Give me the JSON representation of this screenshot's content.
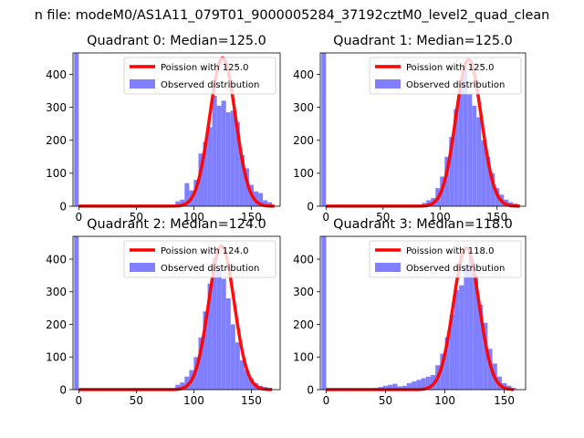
{
  "suptitle": "n file: modeM0/AS1A11_079T01_9000005284_37192cztM0_level2_quad_clean",
  "colors": {
    "bars": "#8080ff",
    "fit": "#ff0000"
  },
  "chart_data": [
    {
      "type": "bar",
      "title": "Quadrant 0: Median=125.0",
      "xlim": [
        -5,
        175
      ],
      "ylim": [
        0,
        465
      ],
      "xticks": [
        0,
        50,
        100,
        150
      ],
      "yticks": [
        0,
        100,
        200,
        300,
        400
      ],
      "legend": {
        "placement": "top-right",
        "fit_label": "Poission with 125.0",
        "bar_label": "Observed distribution"
      },
      "bin_width": 4,
      "bins": [
        [
          -2,
          465
        ],
        [
          2,
          2
        ],
        [
          6,
          2
        ],
        [
          10,
          2
        ],
        [
          14,
          2
        ],
        [
          18,
          2
        ],
        [
          22,
          2
        ],
        [
          26,
          2
        ],
        [
          30,
          2
        ],
        [
          34,
          2
        ],
        [
          38,
          2
        ],
        [
          42,
          2
        ],
        [
          46,
          2
        ],
        [
          50,
          2
        ],
        [
          54,
          2
        ],
        [
          58,
          2
        ],
        [
          62,
          2
        ],
        [
          66,
          2
        ],
        [
          70,
          2
        ],
        [
          74,
          2
        ],
        [
          78,
          2
        ],
        [
          82,
          3
        ],
        [
          86,
          15
        ],
        [
          90,
          20
        ],
        [
          94,
          70
        ],
        [
          98,
          48
        ],
        [
          102,
          80
        ],
        [
          106,
          160
        ],
        [
          110,
          195
        ],
        [
          114,
          240
        ],
        [
          118,
          335
        ],
        [
          122,
          305
        ],
        [
          126,
          320
        ],
        [
          130,
          285
        ],
        [
          134,
          290
        ],
        [
          138,
          255
        ],
        [
          142,
          155
        ],
        [
          146,
          115
        ],
        [
          150,
          65
        ],
        [
          154,
          45
        ],
        [
          158,
          40
        ],
        [
          162,
          18
        ],
        [
          166,
          12
        ]
      ],
      "fit": {
        "mean": 125,
        "peak": 450,
        "x": [
          0,
          170
        ]
      }
    },
    {
      "type": "bar",
      "title": "Quadrant 1: Median=125.0",
      "xlim": [
        -5,
        175
      ],
      "ylim": [
        0,
        465
      ],
      "xticks": [
        0,
        50,
        100,
        150
      ],
      "yticks": [
        0,
        100,
        200,
        300,
        400
      ],
      "legend": {
        "placement": "top-right",
        "fit_label": "Poission with 125.0",
        "bar_label": "Observed distribution"
      },
      "bin_width": 4,
      "bins": [
        [
          -2,
          465
        ],
        [
          2,
          2
        ],
        [
          6,
          2
        ],
        [
          10,
          2
        ],
        [
          14,
          2
        ],
        [
          18,
          2
        ],
        [
          22,
          2
        ],
        [
          26,
          2
        ],
        [
          30,
          2
        ],
        [
          34,
          2
        ],
        [
          38,
          2
        ],
        [
          42,
          2
        ],
        [
          46,
          2
        ],
        [
          50,
          2
        ],
        [
          54,
          2
        ],
        [
          58,
          2
        ],
        [
          62,
          2
        ],
        [
          66,
          2
        ],
        [
          70,
          2
        ],
        [
          74,
          2
        ],
        [
          78,
          2
        ],
        [
          82,
          3
        ],
        [
          86,
          10
        ],
        [
          90,
          18
        ],
        [
          94,
          25
        ],
        [
          98,
          55
        ],
        [
          102,
          90
        ],
        [
          106,
          150
        ],
        [
          110,
          210
        ],
        [
          114,
          295
        ],
        [
          118,
          375
        ],
        [
          122,
          420
        ],
        [
          126,
          340
        ],
        [
          130,
          305
        ],
        [
          134,
          270
        ],
        [
          138,
          200
        ],
        [
          142,
          150
        ],
        [
          146,
          100
        ],
        [
          150,
          55
        ],
        [
          154,
          35
        ],
        [
          158,
          20
        ],
        [
          162,
          12
        ],
        [
          166,
          8
        ]
      ],
      "fit": {
        "mean": 125,
        "peak": 445,
        "x": [
          0,
          170
        ]
      }
    },
    {
      "type": "bar",
      "title": "Quadrant 2: Median=124.0",
      "xlim": [
        -5,
        175
      ],
      "ylim": [
        0,
        470
      ],
      "xticks": [
        0,
        50,
        100,
        150
      ],
      "yticks": [
        0,
        100,
        200,
        300,
        400
      ],
      "legend": {
        "placement": "top-right",
        "fit_label": "Poission with 124.0",
        "bar_label": "Observed distribution"
      },
      "bin_width": 4,
      "bins": [
        [
          -2,
          470
        ],
        [
          2,
          2
        ],
        [
          6,
          2
        ],
        [
          10,
          2
        ],
        [
          14,
          2
        ],
        [
          18,
          2
        ],
        [
          22,
          2
        ],
        [
          26,
          2
        ],
        [
          30,
          2
        ],
        [
          34,
          2
        ],
        [
          38,
          2
        ],
        [
          42,
          2
        ],
        [
          46,
          2
        ],
        [
          50,
          2
        ],
        [
          54,
          2
        ],
        [
          58,
          2
        ],
        [
          62,
          2
        ],
        [
          66,
          2
        ],
        [
          70,
          2
        ],
        [
          74,
          2
        ],
        [
          78,
          2
        ],
        [
          82,
          3
        ],
        [
          86,
          15
        ],
        [
          90,
          22
        ],
        [
          94,
          40
        ],
        [
          98,
          60
        ],
        [
          102,
          100
        ],
        [
          106,
          160
        ],
        [
          110,
          240
        ],
        [
          114,
          325
        ],
        [
          118,
          405
        ],
        [
          122,
          365
        ],
        [
          126,
          340
        ],
        [
          130,
          280
        ],
        [
          134,
          200
        ],
        [
          138,
          145
        ],
        [
          142,
          90
        ],
        [
          146,
          60
        ],
        [
          150,
          35
        ],
        [
          154,
          20
        ],
        [
          158,
          12
        ],
        [
          162,
          8
        ],
        [
          166,
          5
        ]
      ],
      "fit": {
        "mean": 124,
        "peak": 440,
        "x": [
          0,
          168
        ]
      }
    },
    {
      "type": "bar",
      "title": "Quadrant 3: Median=118.0",
      "xlim": [
        -5,
        168
      ],
      "ylim": [
        0,
        470
      ],
      "xticks": [
        0,
        50,
        100,
        150
      ],
      "yticks": [
        0,
        100,
        200,
        300,
        400
      ],
      "legend": {
        "placement": "top-right",
        "fit_label": "Poission with 118.0",
        "bar_label": "Observed distribution"
      },
      "bin_width": 4,
      "bins": [
        [
          -2,
          470
        ],
        [
          2,
          2
        ],
        [
          6,
          2
        ],
        [
          10,
          2
        ],
        [
          14,
          2
        ],
        [
          18,
          2
        ],
        [
          22,
          2
        ],
        [
          26,
          2
        ],
        [
          30,
          2
        ],
        [
          34,
          2
        ],
        [
          38,
          3
        ],
        [
          42,
          5
        ],
        [
          46,
          8
        ],
        [
          50,
          12
        ],
        [
          54,
          15
        ],
        [
          58,
          18
        ],
        [
          62,
          10
        ],
        [
          66,
          12
        ],
        [
          70,
          20
        ],
        [
          74,
          25
        ],
        [
          78,
          30
        ],
        [
          82,
          35
        ],
        [
          86,
          40
        ],
        [
          90,
          45
        ],
        [
          94,
          75
        ],
        [
          98,
          110
        ],
        [
          102,
          160
        ],
        [
          106,
          230
        ],
        [
          110,
          305
        ],
        [
          114,
          320
        ],
        [
          118,
          380
        ],
        [
          122,
          410
        ],
        [
          126,
          350
        ],
        [
          130,
          260
        ],
        [
          134,
          205
        ],
        [
          138,
          125
        ],
        [
          142,
          80
        ],
        [
          146,
          40
        ],
        [
          150,
          20
        ],
        [
          154,
          12
        ],
        [
          158,
          5
        ]
      ],
      "fit": {
        "mean": 118,
        "peak": 435,
        "x": [
          0,
          158
        ]
      }
    }
  ]
}
